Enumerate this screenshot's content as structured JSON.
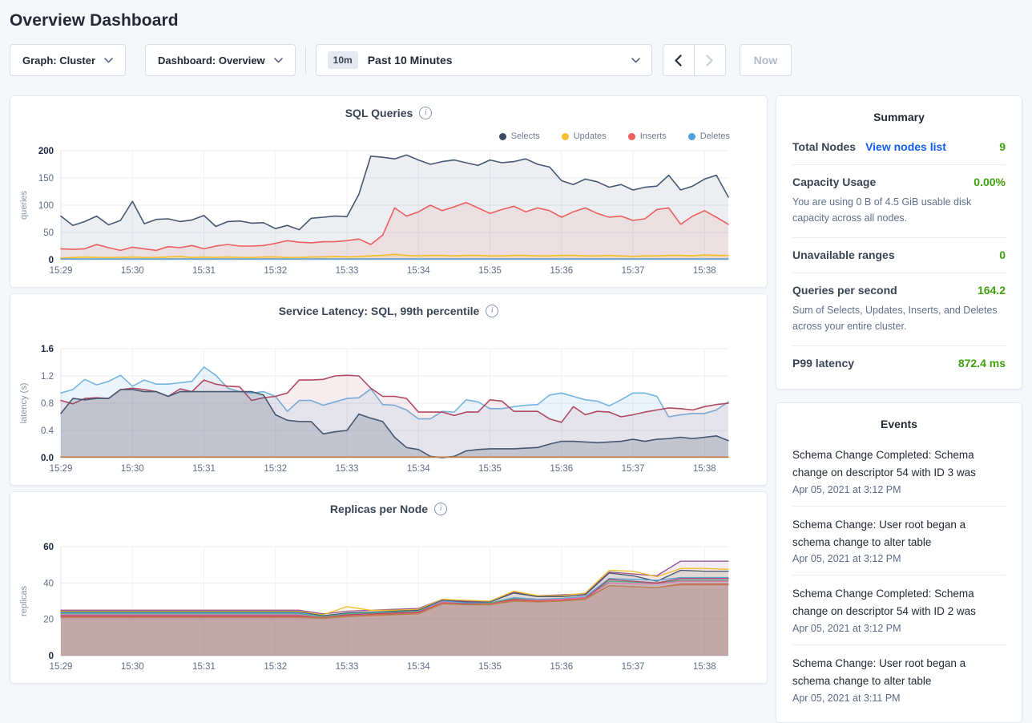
{
  "page": {
    "title": "Overview Dashboard"
  },
  "toolbar": {
    "graph_dropdown": "Graph: Cluster",
    "dashboard_dropdown": "Dashboard: Overview",
    "time_badge": "10m",
    "time_label": "Past 10 Minutes",
    "now_button": "Now"
  },
  "summary": {
    "title": "Summary",
    "value_color": "#3fa10e",
    "link_color": "#135ef2",
    "rows": [
      {
        "label": "Total Nodes",
        "link": "View nodes list",
        "value": "9"
      },
      {
        "label": "Capacity Usage",
        "value": "0.00%",
        "subtext": "You are using 0 B of 4.5 GiB usable disk capacity across all nodes."
      },
      {
        "label": "Unavailable ranges",
        "value": "0"
      },
      {
        "label": "Queries per second",
        "value": "164.2",
        "subtext": "Sum of Selects, Updates, Inserts, and Deletes across your entire cluster."
      },
      {
        "label": "P99 latency",
        "value": "872.4 ms"
      }
    ]
  },
  "events": {
    "title": "Events",
    "items": [
      {
        "text": "Schema Change Completed: Schema change on descriptor 54 with ID 3 was",
        "time": "Apr 05, 2021 at 3:12 PM"
      },
      {
        "text": "Schema Change: User root began a schema change to alter table",
        "time": "Apr 05, 2021 at 3:12 PM"
      },
      {
        "text": "Schema Change Completed: Schema change on descriptor 54 with ID 2 was",
        "time": "Apr 05, 2021 at 3:12 PM"
      },
      {
        "text": "Schema Change: User root began a schema change to alter table",
        "time": "Apr 05, 2021 at 3:11 PM"
      }
    ]
  },
  "chart_data": [
    {
      "type": "area",
      "name": "sql-queries",
      "title": "SQL Queries",
      "ylabel": "queries",
      "ylim": [
        0,
        200
      ],
      "yticks": [
        0,
        50,
        100,
        150,
        200
      ],
      "ytick_labels": [
        "0",
        "50",
        "100",
        "150",
        "200"
      ],
      "x_labels": [
        "15:29",
        "15:30",
        "15:31",
        "15:32",
        "15:33",
        "15:34",
        "15:35",
        "15:36",
        "15:37",
        "15:38"
      ],
      "x_tick_every": 6,
      "legend": [
        {
          "label": "Selects",
          "color": "#3c4a63"
        },
        {
          "label": "Updates",
          "color": "#f5be2e"
        },
        {
          "label": "Inserts",
          "color": "#ef5e5e"
        },
        {
          "label": "Deletes",
          "color": "#4ea3dd"
        }
      ],
      "series": [
        {
          "name": "Selects",
          "color": "#475872",
          "fill": "rgba(71,88,114,0.10)",
          "values": [
            80,
            63,
            70,
            80,
            64,
            72,
            107,
            66,
            74,
            75,
            70,
            73,
            81,
            61,
            70,
            71,
            67,
            68,
            57,
            63,
            55,
            76,
            78,
            80,
            79,
            120,
            190,
            188,
            185,
            192,
            183,
            175,
            180,
            183,
            178,
            173,
            183,
            178,
            180,
            185,
            175,
            170,
            145,
            138,
            148,
            143,
            133,
            138,
            128,
            133,
            135,
            155,
            128,
            135,
            148,
            155,
            115
          ]
        },
        {
          "name": "Inserts",
          "color": "#ea5f5f",
          "fill": "rgba(234,95,95,0.10)",
          "values": [
            20,
            19,
            20,
            28,
            22,
            17,
            23,
            20,
            17,
            24,
            22,
            26,
            20,
            25,
            28,
            25,
            25,
            26,
            30,
            35,
            32,
            31,
            33,
            33,
            35,
            38,
            28,
            45,
            95,
            80,
            88,
            100,
            90,
            97,
            105,
            95,
            85,
            92,
            98,
            88,
            95,
            90,
            78,
            88,
            95,
            85,
            78,
            80,
            72,
            75,
            92,
            95,
            65,
            80,
            90,
            78,
            65
          ]
        },
        {
          "name": "Updates",
          "color": "#f2be2c",
          "fill": "rgba(242,190,44,0.18)",
          "values": [
            3,
            4,
            5,
            4,
            4,
            4,
            5,
            4,
            4,
            5,
            6,
            4,
            5,
            4,
            5,
            4,
            4,
            5,
            5,
            4,
            4,
            5,
            5,
            6,
            5,
            6,
            7,
            8,
            10,
            8,
            7,
            8,
            8,
            7,
            8,
            8,
            7,
            7,
            8,
            8,
            7,
            7,
            8,
            8,
            7,
            7,
            8,
            7,
            6,
            7,
            7,
            8,
            8,
            7,
            9,
            8,
            8
          ]
        },
        {
          "name": "Deletes",
          "color": "#5ba3d9",
          "fill": "rgba(91,163,217,0.28)",
          "values": [
            1.5,
            1.5,
            1.5,
            1.5,
            1.5,
            1.5,
            1.5,
            1.5,
            1.5,
            1.5,
            1.5,
            1.5,
            1.5,
            1.5,
            1.5,
            1.5,
            1.5,
            1.5,
            1.5,
            1.5,
            1.5,
            1.5,
            1.5,
            1.5,
            1.5,
            1.5,
            1.5,
            1.5,
            1.5,
            1.5,
            1.5,
            1.5,
            1.5,
            1.5,
            1.5,
            1.5,
            1.5,
            1.5,
            1.5,
            1.5,
            1.5,
            1.5,
            1.5,
            1.5,
            1.5,
            1.5,
            1.5,
            1.5,
            1.5,
            1.5,
            1.5,
            1.5,
            1.5,
            1.5,
            1.5,
            1.5,
            1.5
          ]
        }
      ]
    },
    {
      "type": "area",
      "name": "service-latency",
      "title": "Service Latency: SQL, 99th percentile",
      "ylabel": "latency (s)",
      "ylim": [
        0,
        1.6
      ],
      "yticks": [
        0,
        0.4,
        0.8,
        1.2,
        1.6
      ],
      "ytick_labels": [
        "0.0",
        "0.4",
        "0.8",
        "1.2",
        "1.6"
      ],
      "x_labels": [
        "15:29",
        "15:30",
        "15:31",
        "15:32",
        "15:33",
        "15:34",
        "15:35",
        "15:36",
        "15:37",
        "15:38"
      ],
      "x_tick_every": 6,
      "legend": null,
      "series": [
        {
          "name": "series-1",
          "color": "#74b4e0",
          "fill": "rgba(116,179,224,0.14)",
          "values": [
            0.95,
            1.0,
            1.15,
            1.07,
            1.12,
            1.21,
            1.05,
            1.14,
            1.08,
            1.08,
            1.1,
            1.12,
            1.33,
            1.21,
            1.02,
            0.97,
            0.95,
            0.97,
            0.9,
            0.68,
            0.84,
            0.84,
            0.77,
            0.82,
            0.87,
            0.88,
            1.01,
            0.78,
            0.77,
            0.7,
            0.57,
            0.57,
            0.68,
            0.67,
            0.85,
            0.82,
            0.72,
            0.72,
            0.75,
            0.77,
            0.78,
            0.92,
            0.95,
            0.9,
            0.85,
            0.83,
            0.76,
            0.85,
            0.95,
            0.95,
            0.9,
            0.6,
            0.63,
            0.65,
            0.65,
            0.7,
            0.82
          ]
        },
        {
          "name": "series-2",
          "color": "#b04a62",
          "fill": "rgba(176,74,98,0.10)",
          "values": [
            0.84,
            0.79,
            0.87,
            0.88,
            0.87,
            1.0,
            1.02,
            1.0,
            0.97,
            0.9,
            1.01,
            0.97,
            1.14,
            1.08,
            1.05,
            1.04,
            0.84,
            0.88,
            0.9,
            0.95,
            1.14,
            1.14,
            1.15,
            1.2,
            1.21,
            1.2,
            1.02,
            0.9,
            0.9,
            0.87,
            0.67,
            0.67,
            0.67,
            0.62,
            0.67,
            0.67,
            0.85,
            0.83,
            0.68,
            0.68,
            0.68,
            0.57,
            0.52,
            0.75,
            0.63,
            0.68,
            0.67,
            0.6,
            0.63,
            0.67,
            0.7,
            0.73,
            0.72,
            0.7,
            0.75,
            0.78,
            0.8
          ]
        },
        {
          "name": "series-3",
          "color": "#475872",
          "fill": "rgba(71,88,114,0.22)",
          "values": [
            0.65,
            0.87,
            0.85,
            0.87,
            0.87,
            1.0,
            1.0,
            0.97,
            0.97,
            0.9,
            0.97,
            0.97,
            0.97,
            0.97,
            0.97,
            0.97,
            0.97,
            0.92,
            0.63,
            0.55,
            0.53,
            0.53,
            0.35,
            0.38,
            0.4,
            0.64,
            0.58,
            0.53,
            0.3,
            0.15,
            0.12,
            0.02,
            0.0,
            0.02,
            0.1,
            0.12,
            0.13,
            0.13,
            0.13,
            0.14,
            0.15,
            0.2,
            0.24,
            0.24,
            0.23,
            0.22,
            0.23,
            0.24,
            0.27,
            0.24,
            0.27,
            0.28,
            0.3,
            0.28,
            0.3,
            0.32,
            0.25
          ]
        },
        {
          "name": "series-4",
          "color": "#c97e49",
          "fill": null,
          "values": [
            0.01,
            0.01,
            0.01,
            0.01,
            0.01,
            0.01,
            0.01,
            0.01,
            0.01,
            0.01,
            0.01,
            0.01,
            0.01,
            0.01,
            0.01,
            0.01,
            0.01,
            0.01,
            0.01,
            0.01,
            0.01,
            0.01,
            0.01,
            0.01,
            0.01,
            0.01,
            0.01,
            0.01,
            0.01,
            0.01,
            0.01,
            0.01,
            0.01,
            0.01,
            0.01,
            0.01,
            0.01,
            0.01,
            0.01,
            0.01,
            0.01,
            0.01,
            0.01,
            0.01,
            0.01,
            0.01,
            0.01,
            0.01,
            0.01,
            0.01,
            0.01,
            0.01,
            0.01,
            0.01,
            0.01,
            0.01,
            0.01
          ]
        }
      ]
    },
    {
      "type": "area",
      "name": "replicas-per-node",
      "title": "Replicas per Node",
      "ylabel": "replicas",
      "ylim": [
        0,
        60
      ],
      "yticks": [
        0,
        20,
        40,
        60
      ],
      "ytick_labels": [
        "0",
        "20",
        "40",
        "60"
      ],
      "x_labels": [
        "15:29",
        "15:30",
        "15:31",
        "15:32",
        "15:33",
        "15:34",
        "15:35",
        "15:36",
        "15:37",
        "15:38"
      ],
      "x_tick_every": 3,
      "legend": null,
      "line_width": 1.3,
      "series": [
        {
          "name": "series-1",
          "color": "#8f4899",
          "fill": "rgba(143,72,153,0.10)",
          "values": [
            25,
            25,
            25,
            25,
            25,
            25,
            25,
            25,
            25,
            25,
            25,
            23,
            24.5,
            25,
            25.5,
            26,
            31,
            30,
            30,
            35,
            33,
            33.5,
            34,
            46,
            45,
            44,
            52,
            52,
            52
          ]
        },
        {
          "name": "series-2",
          "color": "#f2be2c",
          "fill": "rgba(242,190,44,0.10)",
          "values": [
            24.5,
            24.5,
            24.5,
            24.5,
            24.5,
            24.5,
            24.5,
            24.5,
            24.5,
            24.5,
            24.5,
            22.5,
            27,
            25,
            25,
            25.5,
            31,
            30.5,
            30,
            35.5,
            33,
            33,
            34.5,
            47,
            46.5,
            43.5,
            48,
            48,
            47.5
          ]
        },
        {
          "name": "series-3",
          "color": "#475872",
          "fill": "rgba(71,88,114,0.10)",
          "values": [
            24,
            24,
            24,
            24,
            24,
            24,
            24,
            24,
            24,
            24,
            24,
            22,
            23.5,
            24,
            24.5,
            25,
            30.5,
            29.5,
            29.5,
            34.5,
            32.5,
            32.5,
            33.5,
            45.5,
            44,
            41,
            47,
            46.5,
            46.5
          ]
        },
        {
          "name": "series-4",
          "color": "#5ba3d9",
          "fill": "rgba(91,163,217,0.10)",
          "values": [
            23.5,
            23.5,
            23.5,
            23.5,
            23.5,
            23.5,
            23.5,
            23.5,
            23.5,
            23.5,
            23.5,
            21.5,
            23,
            23.5,
            24,
            24.5,
            30,
            29,
            29,
            32,
            31,
            31.5,
            32.5,
            42.5,
            42,
            41.5,
            43,
            43,
            43
          ]
        },
        {
          "name": "series-5",
          "color": "#4fb58a",
          "fill": "rgba(79,181,138,0.10)",
          "values": [
            23,
            23,
            23,
            23,
            23,
            23,
            23,
            23,
            23,
            23,
            23,
            21.5,
            23,
            23.5,
            24,
            24.5,
            29.5,
            28.5,
            29,
            31.5,
            30.5,
            31,
            32,
            41,
            40.5,
            40,
            41.5,
            41.5,
            41.5
          ]
        },
        {
          "name": "series-6",
          "color": "#e873ab",
          "fill": "rgba(232,115,171,0.10)",
          "values": [
            22.5,
            22.5,
            22.5,
            22.5,
            22.5,
            22.5,
            22.5,
            22.5,
            22.5,
            22.5,
            22.5,
            20.5,
            22.5,
            23,
            23.5,
            24,
            29.5,
            28.5,
            28.5,
            31,
            30.5,
            31,
            32,
            40,
            39.5,
            39.5,
            41,
            41,
            41
          ]
        },
        {
          "name": "series-7",
          "color": "#a84f6f",
          "fill": "rgba(168,79,111,0.10)",
          "values": [
            22,
            22,
            22,
            22,
            22,
            22,
            22,
            22,
            22,
            22,
            22,
            21,
            22.5,
            23,
            23.5,
            24,
            29,
            28.5,
            28.5,
            31,
            30,
            30.5,
            31.5,
            42,
            41,
            40,
            42.5,
            42.5,
            42.5
          ]
        },
        {
          "name": "series-8",
          "color": "#dd5c5c",
          "fill": "rgba(221,92,92,0.10)",
          "values": [
            21.5,
            21.5,
            21.5,
            21.5,
            21.5,
            21.5,
            21.5,
            21.5,
            21.5,
            21.5,
            21.5,
            21,
            22,
            22.5,
            23,
            23.5,
            29,
            28,
            28.5,
            30.5,
            30,
            30.5,
            31.5,
            38.5,
            38,
            37.5,
            39.5,
            39.5,
            39.5
          ]
        },
        {
          "name": "series-9",
          "color": "#b5854b",
          "fill": "rgba(181,133,75,0.12)",
          "values": [
            21,
            21,
            21,
            21,
            21,
            21,
            21,
            21,
            21,
            21,
            21,
            20.5,
            21.5,
            22,
            22.5,
            23,
            28.5,
            28,
            28,
            30,
            29.5,
            30,
            31,
            38.5,
            38,
            37.5,
            39,
            39,
            39
          ]
        }
      ]
    }
  ]
}
